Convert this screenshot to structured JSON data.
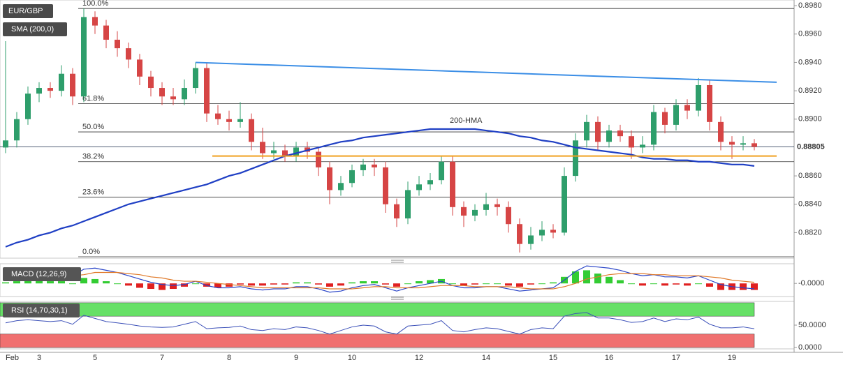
{
  "chart_data": {
    "type": "candlestick",
    "symbol": "EUR/GBP",
    "indicator": "SMA (200,0)",
    "up_color": "#2e9e6b",
    "down_color": "#d64545",
    "categories": [
      "Feb",
      null,
      null,
      "3",
      null,
      null,
      null,
      null,
      "5",
      null,
      null,
      null,
      null,
      null,
      "7",
      null,
      null,
      null,
      null,
      null,
      "8",
      null,
      null,
      null,
      null,
      null,
      "9",
      null,
      null,
      null,
      null,
      "10",
      null,
      null,
      null,
      null,
      null,
      "12",
      null,
      null,
      null,
      null,
      null,
      "14",
      null,
      null,
      null,
      null,
      null,
      "15",
      null,
      null,
      null,
      null,
      "16",
      null,
      null,
      null,
      null,
      null,
      "17",
      null,
      null,
      null,
      null,
      "19",
      null,
      null
    ],
    "candles": [
      [
        0.888,
        0.8955,
        0.8876,
        0.8885
      ],
      [
        0.8885,
        0.8905,
        0.888,
        0.89
      ],
      [
        0.89,
        0.8923,
        0.8896,
        0.8918
      ],
      [
        0.8918,
        0.8926,
        0.8912,
        0.8922
      ],
      [
        0.8922,
        0.8926,
        0.8915,
        0.892
      ],
      [
        0.892,
        0.8938,
        0.8916,
        0.8932
      ],
      [
        0.8932,
        0.8936,
        0.891,
        0.8916
      ],
      [
        0.8916,
        0.8978,
        0.8912,
        0.8972
      ],
      [
        0.8972,
        0.8976,
        0.896,
        0.8966
      ],
      [
        0.8966,
        0.897,
        0.895,
        0.8956
      ],
      [
        0.8956,
        0.8962,
        0.8944,
        0.895
      ],
      [
        0.895,
        0.8954,
        0.8936,
        0.8942
      ],
      [
        0.8942,
        0.8946,
        0.8924,
        0.893
      ],
      [
        0.893,
        0.8934,
        0.8916,
        0.8922
      ],
      [
        0.8922,
        0.8926,
        0.891,
        0.8916
      ],
      [
        0.8916,
        0.8922,
        0.891,
        0.8914
      ],
      [
        0.8914,
        0.8928,
        0.891,
        0.8922
      ],
      [
        0.8922,
        0.894,
        0.8918,
        0.8936
      ],
      [
        0.8936,
        0.894,
        0.8898,
        0.8904
      ],
      [
        0.8904,
        0.891,
        0.8896,
        0.89
      ],
      [
        0.89,
        0.8906,
        0.8892,
        0.8898
      ],
      [
        0.8898,
        0.8912,
        0.8894,
        0.89
      ],
      [
        0.89,
        0.8904,
        0.8878,
        0.8884
      ],
      [
        0.8884,
        0.8894,
        0.8872,
        0.8876
      ],
      [
        0.8876,
        0.8884,
        0.8872,
        0.8878
      ],
      [
        0.8878,
        0.8882,
        0.887,
        0.8874
      ],
      [
        0.8874,
        0.8884,
        0.887,
        0.888
      ],
      [
        0.888,
        0.8884,
        0.8872,
        0.8877
      ],
      [
        0.8877,
        0.888,
        0.886,
        0.8866
      ],
      [
        0.8866,
        0.887,
        0.884,
        0.885
      ],
      [
        0.885,
        0.886,
        0.8846,
        0.8855
      ],
      [
        0.8855,
        0.8868,
        0.8852,
        0.8864
      ],
      [
        0.8864,
        0.8872,
        0.886,
        0.8868
      ],
      [
        0.8868,
        0.8872,
        0.886,
        0.8866
      ],
      [
        0.8866,
        0.887,
        0.8834,
        0.884
      ],
      [
        0.884,
        0.8844,
        0.8824,
        0.883
      ],
      [
        0.883,
        0.8856,
        0.8826,
        0.885
      ],
      [
        0.885,
        0.886,
        0.8846,
        0.8854
      ],
      [
        0.8854,
        0.8862,
        0.885,
        0.8857
      ],
      [
        0.8857,
        0.8874,
        0.8854,
        0.887
      ],
      [
        0.887,
        0.8874,
        0.8832,
        0.8838
      ],
      [
        0.8838,
        0.8842,
        0.8824,
        0.8832
      ],
      [
        0.8832,
        0.884,
        0.8828,
        0.8836
      ],
      [
        0.8836,
        0.8848,
        0.8832,
        0.884
      ],
      [
        0.884,
        0.8844,
        0.8832,
        0.8838
      ],
      [
        0.8838,
        0.8842,
        0.882,
        0.8826
      ],
      [
        0.8826,
        0.883,
        0.8806,
        0.8812
      ],
      [
        0.8812,
        0.8824,
        0.8808,
        0.8818
      ],
      [
        0.8818,
        0.8828,
        0.8814,
        0.8822
      ],
      [
        0.8822,
        0.8826,
        0.8816,
        0.882
      ],
      [
        0.882,
        0.8866,
        0.8818,
        0.886
      ],
      [
        0.886,
        0.889,
        0.8856,
        0.8885
      ],
      [
        0.8885,
        0.8903,
        0.888,
        0.8898
      ],
      [
        0.8898,
        0.8902,
        0.8878,
        0.8884
      ],
      [
        0.8884,
        0.8896,
        0.888,
        0.8892
      ],
      [
        0.8892,
        0.8896,
        0.8884,
        0.8888
      ],
      [
        0.8888,
        0.8892,
        0.8872,
        0.888
      ],
      [
        0.888,
        0.8888,
        0.8876,
        0.8882
      ],
      [
        0.8882,
        0.891,
        0.8878,
        0.8905
      ],
      [
        0.8905,
        0.8908,
        0.889,
        0.8896
      ],
      [
        0.8896,
        0.8914,
        0.8892,
        0.891
      ],
      [
        0.891,
        0.8914,
        0.89,
        0.8906
      ],
      [
        0.8906,
        0.8929,
        0.8902,
        0.8924
      ],
      [
        0.8924,
        0.8928,
        0.8892,
        0.8898
      ],
      [
        0.8898,
        0.8902,
        0.8878,
        0.8884
      ],
      [
        0.8884,
        0.8888,
        0.8872,
        0.8882
      ],
      [
        0.8882,
        0.8888,
        0.8878,
        0.8883
      ],
      [
        0.8883,
        0.8886,
        0.8878,
        0.88805
      ]
    ],
    "ylim": [
      0.8802,
      0.8984
    ],
    "yticks": [
      {
        "value": 0.898,
        "label": "0.8980"
      },
      {
        "value": 0.896,
        "label": "0.8960"
      },
      {
        "value": 0.894,
        "label": "0.8940"
      },
      {
        "value": 0.892,
        "label": "0.8920"
      },
      {
        "value": 0.89,
        "label": "0.8900"
      },
      {
        "value": 0.886,
        "label": "0.8860"
      },
      {
        "value": 0.884,
        "label": "0.8840"
      },
      {
        "value": 0.882,
        "label": "0.8820"
      }
    ],
    "last_price": 0.88805,
    "fib_levels": [
      {
        "label": "100.0%",
        "value": 0.8978
      },
      {
        "label": "61.8%",
        "value": 0.8911
      },
      {
        "label": "50.0%",
        "value": 0.8891
      },
      {
        "label": "38.2%",
        "value": 0.887
      },
      {
        "label": "23.6%",
        "value": 0.8845
      },
      {
        "label": "0.0%",
        "value": 0.8803
      }
    ],
    "hma": {
      "name": "200-HMA",
      "color": "#1f3fc4",
      "label_color": "#6a4fb0",
      "values": [
        0.881,
        0.8813,
        0.8815,
        0.8818,
        0.882,
        0.8823,
        0.8825,
        0.8828,
        0.8831,
        0.8834,
        0.8837,
        0.884,
        0.8842,
        0.8844,
        0.8846,
        0.8848,
        0.885,
        0.8852,
        0.8854,
        0.8857,
        0.886,
        0.8862,
        0.8865,
        0.8868,
        0.8871,
        0.8874,
        0.8876,
        0.8878,
        0.888,
        0.8882,
        0.8884,
        0.8885,
        0.8887,
        0.8888,
        0.8889,
        0.889,
        0.8891,
        0.8892,
        0.8893,
        0.8893,
        0.8893,
        0.8893,
        0.8893,
        0.8892,
        0.8891,
        0.889,
        0.8888,
        0.8887,
        0.8885,
        0.8884,
        0.8882,
        0.888,
        0.8879,
        0.8878,
        0.8877,
        0.8876,
        0.8875,
        0.8873,
        0.8872,
        0.8872,
        0.8871,
        0.8871,
        0.887,
        0.887,
        0.8869,
        0.8868,
        0.8868,
        0.8867
      ]
    },
    "trendlines": [
      {
        "color": "#3b8ee6",
        "points": [
          [
            17,
            0.894
          ],
          [
            69,
            0.8926
          ]
        ]
      },
      {
        "color": "#f0a020",
        "points": [
          [
            18.5,
            0.8874
          ],
          [
            69,
            0.8874
          ]
        ]
      }
    ],
    "macd": {
      "title": "MACD (12,26,9)",
      "macd_color": "#2a45c8",
      "signal_color": "#e07a2a",
      "up_color": "#33cc33",
      "down_color": "#e02020",
      "ylim": [
        -0.00012,
        0.00018
      ],
      "yticks": [
        {
          "value": 0,
          "label": "-0.0000"
        }
      ],
      "macd": [
        4e-05,
        6e-05,
        8e-05,
        9e-05,
        8e-05,
        9e-05,
        7e-05,
        0.00013,
        0.00014,
        0.00012,
        0.0001,
        7e-05,
        4e-05,
        1e-05,
        -1e-05,
        -2e-05,
        -1e-05,
        2e-05,
        -2e-05,
        -4e-05,
        -4e-05,
        -3e-05,
        -5e-05,
        -6e-05,
        -5e-05,
        -5e-05,
        -3e-05,
        -3e-05,
        -5e-05,
        -8e-05,
        -7e-05,
        -4e-05,
        -2e-05,
        -1e-05,
        -4e-05,
        -7e-05,
        -4e-05,
        -2e-05,
        0.0,
        2e-05,
        -2e-05,
        -4e-05,
        -4e-05,
        -3e-05,
        -3e-05,
        -5e-05,
        -7e-05,
        -6e-05,
        -5e-05,
        -4e-05,
        3e-05,
        0.00011,
        0.00016,
        0.00015,
        0.00014,
        0.00012,
        9e-05,
        7e-05,
        8e-05,
        6e-05,
        6e-05,
        5e-05,
        7e-05,
        3e-05,
        -1e-05,
        -3e-05,
        -4e-05,
        -5e-05
      ],
      "signal": [
        3e-05,
        4e-05,
        5e-05,
        6e-05,
        6e-05,
        7e-05,
        7e-05,
        8e-05,
        0.0001,
        0.0001,
        0.0001,
        9e-05,
        8e-05,
        6e-05,
        5e-05,
        3e-05,
        2e-05,
        2e-05,
        1e-05,
        0.0,
        -1e-05,
        -2e-05,
        -3e-05,
        -4e-05,
        -4e-05,
        -4e-05,
        -4e-05,
        -4e-05,
        -4e-05,
        -5e-05,
        -5e-05,
        -5e-05,
        -4e-05,
        -3e-05,
        -3e-05,
        -4e-05,
        -4e-05,
        -4e-05,
        -3e-05,
        -2e-05,
        -2e-05,
        -2e-05,
        -3e-05,
        -3e-05,
        -3e-05,
        -3e-05,
        -4e-05,
        -5e-05,
        -5e-05,
        -5e-05,
        -3e-05,
        0.0,
        4e-05,
        6e-05,
        8e-05,
        9e-05,
        9e-05,
        9e-05,
        8e-05,
        8e-05,
        7e-05,
        7e-05,
        7e-05,
        6e-05,
        5e-05,
        3e-05,
        2e-05,
        1e-05
      ],
      "histogram": [
        1e-05,
        2e-05,
        3e-05,
        3e-05,
        2e-05,
        2e-05,
        0.0,
        5e-05,
        4e-05,
        2e-05,
        0.0,
        -2e-05,
        -4e-05,
        -5e-05,
        -6e-05,
        -5e-05,
        -3e-05,
        0.0,
        -3e-05,
        -4e-05,
        -3e-05,
        -1e-05,
        -2e-05,
        -2e-05,
        -1e-05,
        -1e-05,
        1e-05,
        1e-05,
        -1e-05,
        -3e-05,
        -2e-05,
        1e-05,
        2e-05,
        2e-05,
        -1e-05,
        -3e-05,
        0.0,
        2e-05,
        3e-05,
        4e-05,
        0.0,
        -2e-05,
        -1e-05,
        0.0,
        0.0,
        -2e-05,
        -3e-05,
        -1e-05,
        0.0,
        1e-05,
        6e-05,
        0.00011,
        0.00012,
        9e-05,
        6e-05,
        3e-05,
        0.0,
        -2e-05,
        0.0,
        -2e-05,
        -1e-05,
        -2e-05,
        0.0,
        -3e-05,
        -6e-05,
        -6e-05,
        -6e-05,
        -6e-05
      ]
    },
    "rsi": {
      "title": "RSI (14,70,30,1)",
      "color": "#3a4fb8",
      "overbought_zone": [
        70,
        100
      ],
      "oversold_zone": [
        0,
        30
      ],
      "overbought_color": "#66e066",
      "oversold_color": "#f07070",
      "ylim": [
        -3,
        103
      ],
      "yticks": [
        {
          "value": 50,
          "label": "50.0000"
        },
        {
          "value": 0,
          "label": "0.0000"
        }
      ],
      "values": [
        55,
        60,
        62,
        60,
        58,
        60,
        52,
        72,
        65,
        58,
        55,
        52,
        48,
        46,
        45,
        46,
        52,
        58,
        42,
        44,
        45,
        48,
        40,
        38,
        42,
        40,
        46,
        44,
        38,
        30,
        38,
        46,
        50,
        48,
        35,
        30,
        48,
        50,
        52,
        60,
        38,
        35,
        40,
        44,
        42,
        36,
        30,
        40,
        44,
        42,
        70,
        76,
        78,
        66,
        66,
        62,
        56,
        58,
        66,
        58,
        64,
        62,
        68,
        52,
        44,
        44,
        46,
        42
      ]
    }
  }
}
